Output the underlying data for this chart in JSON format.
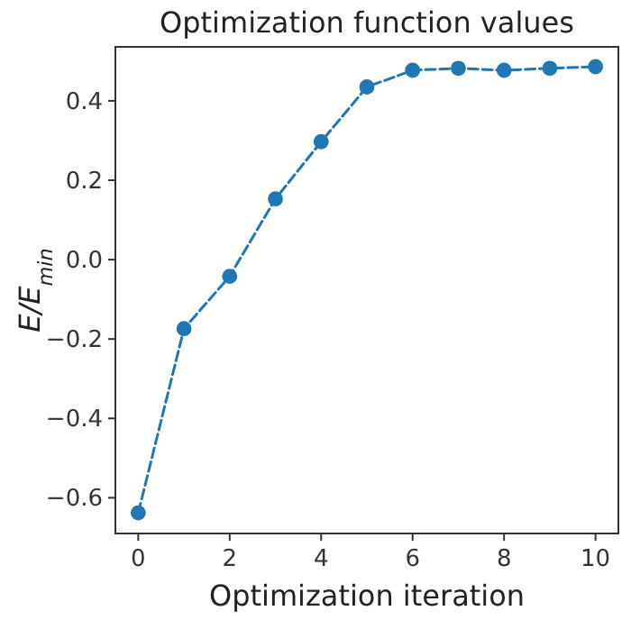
{
  "chart_data": {
    "type": "line",
    "title": "Optimization function values",
    "xlabel": "Optimization iteration",
    "ylabel": "E/E$_{min}$",
    "x": [
      0,
      1,
      2,
      3,
      4,
      5,
      6,
      7,
      8,
      9,
      10
    ],
    "series": [
      {
        "color": "#1f77b4",
        "values": [
          -0.638,
          -0.174,
          -0.042,
          0.153,
          0.297,
          0.435,
          0.477,
          0.482,
          0.477,
          0.482,
          0.486
        ]
      }
    ],
    "xlim": [
      -0.5,
      10.5
    ],
    "ylim": [
      -0.69,
      0.536
    ],
    "xticks": [
      0,
      2,
      4,
      6,
      8,
      10
    ],
    "yticks": [
      {
        "value": -0.6,
        "label": "−0.6"
      },
      {
        "value": -0.4,
        "label": "−0.4"
      },
      {
        "value": -0.2,
        "label": "−0.2"
      },
      {
        "value": 0,
        "label": "0.0"
      },
      0.2,
      0.4
    ],
    "grid": false,
    "marker": "circle",
    "line_style": "dashed"
  }
}
